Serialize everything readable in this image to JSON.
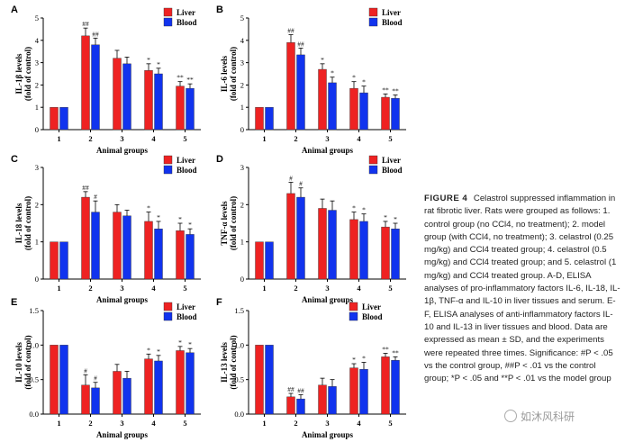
{
  "chart_data": [
    {
      "type": "bar",
      "panel_label": "A",
      "ylabel": "IL-1β  levels",
      "ylabel2": "(fold of control)",
      "xlabel": "Animal groups",
      "categories": [
        "1",
        "2",
        "3",
        "4",
        "5"
      ],
      "ylim": [
        0,
        5
      ],
      "yticks": [
        0,
        1,
        2,
        3,
        4,
        5
      ],
      "tick_format": "0",
      "series": [
        {
          "name": "Liver",
          "values": [
            1.0,
            4.2,
            3.2,
            2.65,
            1.95
          ],
          "errors": [
            0,
            0.35,
            0.35,
            0.3,
            0.2
          ],
          "marks": [
            "",
            "##",
            "",
            "*",
            "**"
          ]
        },
        {
          "name": "Blood",
          "values": [
            1.0,
            3.8,
            2.95,
            2.5,
            1.85
          ],
          "errors": [
            0,
            0.3,
            0.3,
            0.25,
            0.2
          ],
          "marks": [
            "",
            "##",
            "",
            "*",
            "**"
          ]
        }
      ]
    },
    {
      "type": "bar",
      "panel_label": "B",
      "ylabel": "IL-6 levels",
      "ylabel2": "(fold of control)",
      "xlabel": "Animal groups",
      "categories": [
        "1",
        "2",
        "3",
        "4",
        "5"
      ],
      "ylim": [
        0,
        5
      ],
      "yticks": [
        0,
        1,
        2,
        3,
        4,
        5
      ],
      "tick_format": "0",
      "series": [
        {
          "name": "Liver",
          "values": [
            1.0,
            3.9,
            2.7,
            1.85,
            1.45
          ],
          "errors": [
            0,
            0.35,
            0.25,
            0.3,
            0.15
          ],
          "marks": [
            "",
            "##",
            "*",
            "*",
            "**"
          ]
        },
        {
          "name": "Blood",
          "values": [
            1.0,
            3.35,
            2.1,
            1.65,
            1.4
          ],
          "errors": [
            0,
            0.3,
            0.25,
            0.3,
            0.15
          ],
          "marks": [
            "",
            "##",
            "*",
            "*",
            "**"
          ]
        }
      ]
    },
    {
      "type": "bar",
      "panel_label": "C",
      "ylabel": "IL-18 levels",
      "ylabel2": "(fold of control)",
      "xlabel": "Animal groups",
      "categories": [
        "1",
        "2",
        "3",
        "4",
        "5"
      ],
      "ylim": [
        0,
        3
      ],
      "yticks": [
        0,
        1,
        2,
        3
      ],
      "tick_format": "0",
      "series": [
        {
          "name": "Liver",
          "values": [
            1.0,
            2.2,
            1.8,
            1.55,
            1.3
          ],
          "errors": [
            0,
            0.15,
            0.2,
            0.25,
            0.2
          ],
          "marks": [
            "",
            "##",
            "",
            "*",
            "*"
          ]
        },
        {
          "name": "Blood",
          "values": [
            1.0,
            1.8,
            1.7,
            1.35,
            1.2
          ],
          "errors": [
            0,
            0.3,
            0.15,
            0.2,
            0.15
          ],
          "marks": [
            "",
            "#",
            "",
            "*",
            "*"
          ]
        }
      ]
    },
    {
      "type": "bar",
      "panel_label": "D",
      "ylabel": "TNF-α levels",
      "ylabel2": "(fold of control)",
      "xlabel": "Animal groups",
      "categories": [
        "1",
        "2",
        "3",
        "4",
        "5"
      ],
      "ylim": [
        0,
        3
      ],
      "yticks": [
        0,
        1,
        2,
        3
      ],
      "tick_format": "0",
      "series": [
        {
          "name": "Liver",
          "values": [
            1.0,
            2.3,
            1.9,
            1.6,
            1.4
          ],
          "errors": [
            0,
            0.3,
            0.25,
            0.2,
            0.15
          ],
          "marks": [
            "",
            "#",
            "",
            "*",
            "*"
          ]
        },
        {
          "name": "Blood",
          "values": [
            1.0,
            2.2,
            1.85,
            1.55,
            1.35
          ],
          "errors": [
            0,
            0.25,
            0.25,
            0.2,
            0.15
          ],
          "marks": [
            "",
            "#",
            "",
            "*",
            "*"
          ]
        }
      ]
    },
    {
      "type": "bar",
      "panel_label": "E",
      "ylabel": "IL-10 levels",
      "ylabel2": "(fold of control)",
      "xlabel": "Animal groups",
      "categories": [
        "1",
        "2",
        "3",
        "4",
        "5"
      ],
      "ylim": [
        0,
        1.5
      ],
      "yticks": [
        0,
        0.5,
        1.0,
        1.5
      ],
      "tick_format": "0.0",
      "series": [
        {
          "name": "Liver",
          "values": [
            1.0,
            0.42,
            0.62,
            0.8,
            0.92
          ],
          "errors": [
            0,
            0.15,
            0.1,
            0.07,
            0.06
          ],
          "marks": [
            "",
            "#",
            "",
            "*",
            "*"
          ]
        },
        {
          "name": "Blood",
          "values": [
            1.0,
            0.38,
            0.52,
            0.77,
            0.89
          ],
          "errors": [
            0,
            0.08,
            0.1,
            0.08,
            0.06
          ],
          "marks": [
            "",
            "#",
            "",
            "*",
            "*"
          ]
        }
      ]
    },
    {
      "type": "bar",
      "panel_label": "F",
      "ylabel": "IL-13 levels",
      "ylabel2": "(fold of control)",
      "xlabel": "Animal groups",
      "categories": [
        "1",
        "2",
        "3",
        "4",
        "5"
      ],
      "ylim": [
        0,
        1.5
      ],
      "yticks": [
        0,
        0.5,
        1.0,
        1.5
      ],
      "tick_format": "0.0",
      "series": [
        {
          "name": "Liver",
          "values": [
            1.0,
            0.25,
            0.42,
            0.67,
            0.83
          ],
          "errors": [
            0,
            0.05,
            0.1,
            0.06,
            0.05
          ],
          "marks": [
            "",
            "##",
            "",
            "*",
            "**"
          ]
        },
        {
          "name": "Blood",
          "values": [
            1.0,
            0.22,
            0.4,
            0.65,
            0.78
          ],
          "errors": [
            0,
            0.06,
            0.1,
            0.1,
            0.05
          ],
          "marks": [
            "",
            "##",
            "",
            "*",
            "**"
          ]
        }
      ]
    }
  ],
  "colors": {
    "liver": "#ee2222",
    "blood": "#1133ee",
    "axis": "#000000"
  },
  "caption": {
    "lead": "FIGURE 4",
    "text": "Celastrol suppressed inflammation in rat fibrotic liver. Rats were grouped as follows: 1. control group (no CCl4, no treatment); 2. model group (with CCl4, no treatment); 3. celastrol (0.25 mg/kg) and CCl4 treated group; 4. celastrol (0.5 mg/kg) and CCl4 treated group; and 5. celastrol (1 mg/kg) and CCl4 treated group. A-D, ELISA analyses of pro-inflammatory factors IL-6, IL-18, IL-1β, TNF-α and IL-10 in liver tissues and serum. E-F, ELISA analyses of anti-inflammatory factors IL-10 and IL-13 in liver tissues and blood. Data are expressed as mean ± SD, and the experiments were repeated three times. Significance: #P < .05 vs the control group, ##P < .01 vs the control group; *P < .05 and **P < .01 vs the model group"
  },
  "watermark": {
    "text": "如沐风科研"
  }
}
